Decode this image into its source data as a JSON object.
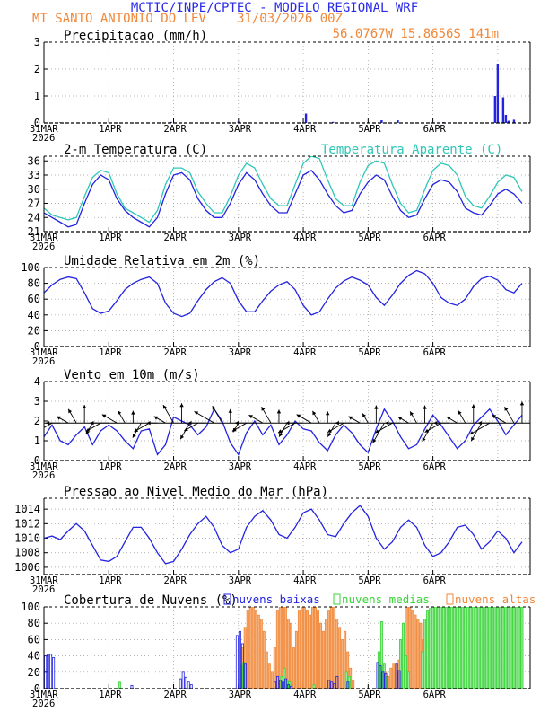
{
  "header": {
    "line1": "MCTIC/INPE/CPTEC - MODELO REGIONAL WRF",
    "location": "MT SANTO ANTONIO DO LEV",
    "run": "31/03/2026 00Z",
    "coords": "56.0767W 15.8656S 141m"
  },
  "colors": {
    "title": "#2a2ae8",
    "orange": "#f0883a",
    "blue": "#2323e0",
    "cyan": "#2ec7b8",
    "green": "#38d438",
    "black": "#000000"
  },
  "x_labels": [
    "31MAR",
    "1APR",
    "2APR",
    "3APR",
    "4APR",
    "5APR",
    "6APR"
  ],
  "year_label": "2026",
  "chart_data": [
    {
      "id": "precip",
      "type": "bar",
      "title": "Precipitacao (mm/h)",
      "xlabel": "time (hours since 31/03 00Z)",
      "ylabel": "mm/h",
      "ylim": [
        0,
        3
      ],
      "yticks": [
        0,
        1,
        2,
        3
      ],
      "x": [
        0,
        6,
        47,
        72,
        97,
        107,
        125,
        131,
        148,
        167,
        168,
        170,
        171,
        172,
        174
      ],
      "values": [
        0.02,
        0.02,
        0.04,
        0.05,
        0.35,
        0.04,
        0.1,
        0.1,
        0.03,
        1.0,
        2.2,
        0.95,
        0.3,
        0.08,
        0.12
      ]
    },
    {
      "id": "temp",
      "type": "line",
      "title": "2-m Temperatura (C)",
      "legend_extra": "Temperatura Aparente (C)",
      "ylim": [
        21,
        37
      ],
      "yticks": [
        21,
        24,
        27,
        30,
        33,
        36
      ],
      "series": [
        {
          "name": "Temperatura",
          "x": [
            0,
            3,
            6,
            9,
            12,
            15,
            18,
            21,
            24,
            27,
            30,
            33,
            36,
            39,
            42,
            45,
            48,
            51,
            54,
            57,
            60,
            63,
            66,
            69,
            72,
            75,
            78,
            81,
            84,
            87,
            90,
            93,
            96,
            99,
            102,
            105,
            108,
            111,
            114,
            117,
            120,
            123,
            126,
            129,
            132,
            135,
            138,
            141,
            144,
            147,
            150,
            153,
            156,
            159,
            162,
            165,
            168,
            171,
            174,
            177
          ],
          "values": [
            25,
            24,
            23,
            22,
            22.5,
            27,
            31,
            33,
            32,
            28,
            25.5,
            24,
            23,
            22,
            24,
            29,
            33,
            33.5,
            32,
            28,
            25.5,
            24,
            24,
            27,
            31,
            33.5,
            32,
            29,
            26.5,
            25,
            25,
            29,
            33,
            34,
            32,
            29,
            26.5,
            25,
            25.5,
            29,
            31.5,
            33,
            32,
            28.5,
            25.5,
            24,
            24.5,
            28,
            31,
            32,
            31.5,
            29.5,
            26,
            25,
            24.5,
            26.5,
            29,
            30,
            29,
            27
          ]
        },
        {
          "name": "Temperatura Aparente",
          "x": [
            0,
            3,
            6,
            9,
            12,
            15,
            18,
            21,
            24,
            27,
            30,
            33,
            36,
            39,
            42,
            45,
            48,
            51,
            54,
            57,
            60,
            63,
            66,
            69,
            72,
            75,
            78,
            81,
            84,
            87,
            90,
            93,
            96,
            99,
            102,
            105,
            108,
            111,
            114,
            117,
            120,
            123,
            126,
            129,
            132,
            135,
            138,
            141,
            144,
            147,
            150,
            153,
            156,
            159,
            162,
            165,
            168,
            171,
            174,
            177
          ],
          "values": [
            26,
            24.5,
            24,
            23.5,
            24,
            28.5,
            32.5,
            34,
            33.5,
            29,
            26,
            25,
            24,
            23,
            25.5,
            31,
            34.5,
            34.5,
            33.5,
            29.5,
            27,
            25,
            25,
            28.5,
            33,
            35.5,
            34.5,
            31,
            28,
            26.5,
            26.5,
            31,
            35.5,
            37,
            36.5,
            32,
            28,
            26.5,
            26.5,
            31.5,
            35,
            36,
            35.5,
            31,
            27,
            25,
            25.5,
            30,
            34,
            35.5,
            35,
            33,
            28.5,
            26.5,
            26,
            28.5,
            31.5,
            33,
            32.5,
            29.5
          ]
        }
      ]
    },
    {
      "id": "rh",
      "type": "line",
      "title": "Umidade Relativa em 2m (%)",
      "ylim": [
        0,
        100
      ],
      "yticks": [
        0,
        20,
        40,
        60,
        80,
        100
      ],
      "series": [
        {
          "name": "Umidade Relativa",
          "x": [
            0,
            3,
            6,
            9,
            12,
            15,
            18,
            21,
            24,
            27,
            30,
            33,
            36,
            39,
            42,
            45,
            48,
            51,
            54,
            57,
            60,
            63,
            66,
            69,
            72,
            75,
            78,
            81,
            84,
            87,
            90,
            93,
            96,
            99,
            102,
            105,
            108,
            111,
            114,
            117,
            120,
            123,
            126,
            129,
            132,
            135,
            138,
            141,
            144,
            147,
            150,
            153,
            156,
            159,
            162,
            165,
            168,
            171,
            174,
            177
          ],
          "values": [
            68,
            78,
            85,
            88,
            86,
            68,
            48,
            42,
            45,
            58,
            72,
            80,
            85,
            88,
            80,
            55,
            42,
            38,
            42,
            58,
            72,
            82,
            87,
            80,
            58,
            44,
            44,
            58,
            70,
            78,
            82,
            72,
            52,
            40,
            44,
            60,
            74,
            83,
            88,
            84,
            78,
            62,
            52,
            65,
            80,
            90,
            96,
            92,
            80,
            62,
            55,
            52,
            60,
            76,
            86,
            89,
            84,
            72,
            68,
            80
          ]
        }
      ]
    },
    {
      "id": "wind",
      "type": "line",
      "title": "Vento em 10m (m/s)",
      "ylim": [
        0,
        4
      ],
      "yticks": [
        0,
        1,
        2,
        3,
        4
      ],
      "series": [
        {
          "name": "Velocidade",
          "x": [
            0,
            3,
            6,
            9,
            12,
            15,
            18,
            21,
            24,
            27,
            30,
            33,
            36,
            39,
            42,
            45,
            48,
            51,
            54,
            57,
            60,
            63,
            66,
            69,
            72,
            75,
            78,
            81,
            84,
            87,
            90,
            93,
            96,
            99,
            102,
            105,
            108,
            111,
            114,
            117,
            120,
            123,
            126,
            129,
            132,
            135,
            138,
            141,
            144,
            147,
            150,
            153,
            156,
            159,
            162,
            165,
            168,
            171,
            174,
            177
          ],
          "values": [
            1.2,
            1.8,
            1.0,
            0.8,
            1.3,
            1.7,
            0.8,
            1.5,
            1.8,
            1.5,
            1.0,
            0.6,
            1.5,
            1.6,
            0.3,
            0.8,
            2.2,
            2.0,
            1.8,
            1.3,
            1.7,
            2.6,
            2.0,
            0.9,
            0.3,
            1.4,
            2.0,
            1.3,
            1.8,
            0.8,
            1.3,
            2.0,
            1.6,
            1.5,
            0.9,
            0.5,
            1.3,
            1.8,
            1.4,
            0.8,
            0.4,
            1.6,
            2.6,
            2.0,
            1.2,
            0.6,
            0.8,
            1.6,
            2.3,
            1.8,
            1.2,
            0.6,
            1.0,
            1.8,
            2.2,
            2.6,
            2.0,
            1.3,
            1.8,
            2.3
          ]
        }
      ],
      "wind_dir_deg": [
        30,
        60,
        90,
        120,
        150,
        180,
        30,
        60,
        90,
        120,
        150,
        180,
        30,
        60,
        90,
        120,
        150,
        180,
        30,
        60,
        90,
        120,
        150,
        180,
        30,
        60,
        90,
        120,
        150,
        180,
        30,
        60,
        90,
        120,
        150,
        180,
        30,
        60,
        90,
        120,
        150,
        180,
        30,
        60,
        90,
        120,
        150,
        180,
        30,
        60,
        90,
        120,
        150,
        180,
        30,
        60,
        90,
        120,
        150,
        180
      ]
    },
    {
      "id": "pres",
      "type": "line",
      "title": "Pressao ao Nivel Medio do Mar (hPa)",
      "ylim": [
        1005,
        1015.5
      ],
      "yticks": [
        1006,
        1008,
        1010,
        1012,
        1014
      ],
      "series": [
        {
          "name": "Pressao",
          "x": [
            0,
            3,
            6,
            9,
            12,
            15,
            18,
            21,
            24,
            27,
            30,
            33,
            36,
            39,
            42,
            45,
            48,
            51,
            54,
            57,
            60,
            63,
            66,
            69,
            72,
            75,
            78,
            81,
            84,
            87,
            90,
            93,
            96,
            99,
            102,
            105,
            108,
            111,
            114,
            117,
            120,
            123,
            126,
            129,
            132,
            135,
            138,
            141,
            144,
            147,
            150,
            153,
            156,
            159,
            162,
            165,
            168,
            171,
            174,
            177
          ],
          "values": [
            1010,
            1010.3,
            1009.8,
            1011,
            1012,
            1011,
            1009,
            1007,
            1006.8,
            1007.5,
            1009.5,
            1011.5,
            1011.5,
            1010,
            1008,
            1006.5,
            1006.8,
            1008.5,
            1010.5,
            1012,
            1013,
            1011.5,
            1009,
            1008,
            1008.5,
            1011.5,
            1013,
            1013.8,
            1012.5,
            1010.5,
            1010,
            1011.5,
            1013.5,
            1014,
            1012.5,
            1010.5,
            1010.2,
            1012,
            1013.5,
            1014.5,
            1013,
            1010,
            1008.5,
            1009.5,
            1011.5,
            1012.5,
            1011.5,
            1009,
            1007.5,
            1008,
            1009.5,
            1011.5,
            1011.8,
            1010.5,
            1008.5,
            1009.5,
            1011,
            1010,
            1008,
            1009.5
          ]
        }
      ]
    },
    {
      "id": "clouds",
      "type": "bar",
      "title": "Cobertura de Nuvens (%)",
      "ylim": [
        0,
        100
      ],
      "yticks": [
        0,
        20,
        40,
        60,
        80,
        100
      ],
      "legend": [
        "nuvens baixas",
        "nuvens medias",
        "nuvens altas"
      ],
      "series": [
        {
          "name": "nuvens baixas",
          "x": [
            0,
            1,
            2,
            3,
            4,
            33,
            51,
            52,
            53,
            54,
            55,
            72,
            73,
            74,
            75,
            86,
            87,
            88,
            89,
            90,
            91,
            92,
            106,
            107,
            108,
            109,
            113,
            124,
            125,
            126,
            127,
            131,
            132
          ],
          "values": [
            30,
            40,
            42,
            42,
            38,
            4,
            12,
            20,
            14,
            8,
            5,
            65,
            70,
            55,
            30,
            8,
            15,
            10,
            8,
            12,
            5,
            3,
            10,
            8,
            6,
            15,
            8,
            32,
            28,
            20,
            18,
            30,
            22
          ]
        },
        {
          "name": "nuvens medias",
          "x": [
            28,
            73,
            74,
            88,
            89,
            90,
            91,
            100,
            112,
            113,
            124,
            125,
            126,
            127,
            132,
            133,
            134,
            135,
            140,
            141,
            142,
            143,
            144,
            145,
            146,
            147,
            148,
            149,
            150,
            151,
            152,
            153,
            154,
            155,
            156,
            157,
            158,
            159,
            160,
            161,
            162,
            163,
            164,
            165,
            166,
            167,
            168,
            169,
            170,
            171,
            172,
            173,
            174,
            175,
            176,
            177
          ],
          "values": [
            8,
            28,
            32,
            15,
            25,
            10,
            8,
            5,
            20,
            15,
            45,
            82,
            30,
            15,
            60,
            80,
            40,
            20,
            45,
            85,
            95,
            98,
            100,
            100,
            100,
            100,
            100,
            100,
            100,
            100,
            100,
            100,
            100,
            100,
            100,
            100,
            100,
            100,
            100,
            100,
            100,
            100,
            100,
            100,
            100,
            100,
            100,
            100,
            100,
            100,
            100,
            100,
            100,
            100,
            100,
            100
          ]
        },
        {
          "name": "nuvens altas",
          "x": [
            73,
            74,
            75,
            76,
            77,
            78,
            79,
            80,
            81,
            82,
            83,
            84,
            85,
            86,
            87,
            88,
            89,
            90,
            91,
            92,
            93,
            94,
            95,
            96,
            97,
            98,
            99,
            100,
            101,
            102,
            103,
            104,
            105,
            106,
            107,
            108,
            109,
            110,
            111,
            112,
            113,
            114,
            126,
            127,
            128,
            129,
            130,
            131,
            132,
            133,
            134,
            135,
            136,
            137,
            138,
            139,
            140,
            141,
            142,
            143
          ],
          "values": [
            50,
            75,
            95,
            100,
            100,
            95,
            90,
            85,
            70,
            45,
            30,
            20,
            50,
            95,
            100,
            100,
            100,
            85,
            80,
            50,
            70,
            95,
            100,
            100,
            95,
            90,
            100,
            100,
            95,
            80,
            70,
            85,
            95,
            100,
            100,
            85,
            75,
            60,
            70,
            45,
            25,
            10,
            20,
            15,
            25,
            30,
            30,
            35,
            35,
            40,
            100,
            100,
            95,
            90,
            85,
            80,
            60,
            40,
            30,
            20
          ]
        }
      ]
    }
  ]
}
